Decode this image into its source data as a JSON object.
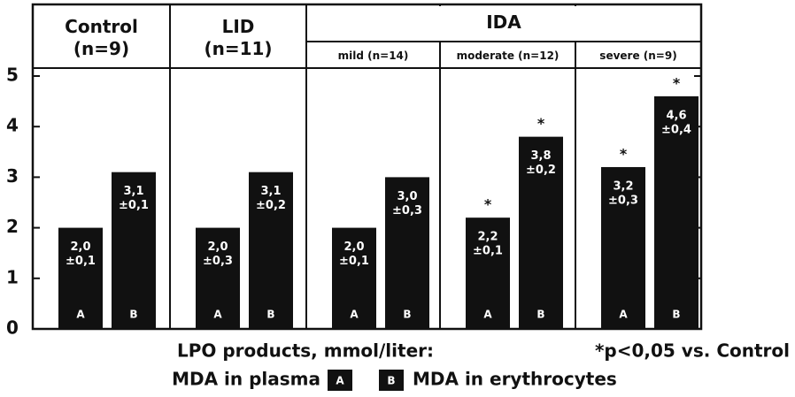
{
  "chart_data": {
    "type": "bar",
    "categories": [
      "Control (n=9)",
      "LID (n=11)",
      "mild (n=14)",
      "moderate (n=12)",
      "severe (n=9)"
    ],
    "category_group": [
      null,
      null,
      "IDA",
      "IDA",
      "IDA"
    ],
    "series": [
      {
        "name": "MDA in plasma",
        "label": "A",
        "color": "#111111",
        "values": [
          2.0,
          2.0,
          2.0,
          2.2,
          3.2
        ],
        "value_labels": [
          "2,0",
          "2,0",
          "2,0",
          "2,2",
          "3,2"
        ],
        "error_labels": [
          "±0,1",
          "±0,3",
          "±0,1",
          "±0,1",
          "±0,3"
        ],
        "markers": [
          null,
          null,
          null,
          "*",
          "*"
        ]
      },
      {
        "name": "MDA in erythrocytes",
        "label": "B",
        "color": "#111111",
        "values": [
          3.1,
          3.1,
          3.0,
          3.8,
          4.6
        ],
        "value_labels": [
          "3,1",
          "3,1",
          "3,0",
          "3,8",
          "4,6"
        ],
        "error_labels": [
          "±0,1",
          "±0,2",
          "±0,3",
          "±0,2",
          "±0,4"
        ],
        "markers": [
          null,
          null,
          null,
          "*",
          "*"
        ]
      }
    ],
    "ylim": [
      0,
      5
    ],
    "yticks": [
      0,
      1,
      2,
      3,
      4,
      5
    ],
    "y_label": "LPO products, mmol/liter:",
    "annotation": "*p<0,05 vs. Control"
  }
}
